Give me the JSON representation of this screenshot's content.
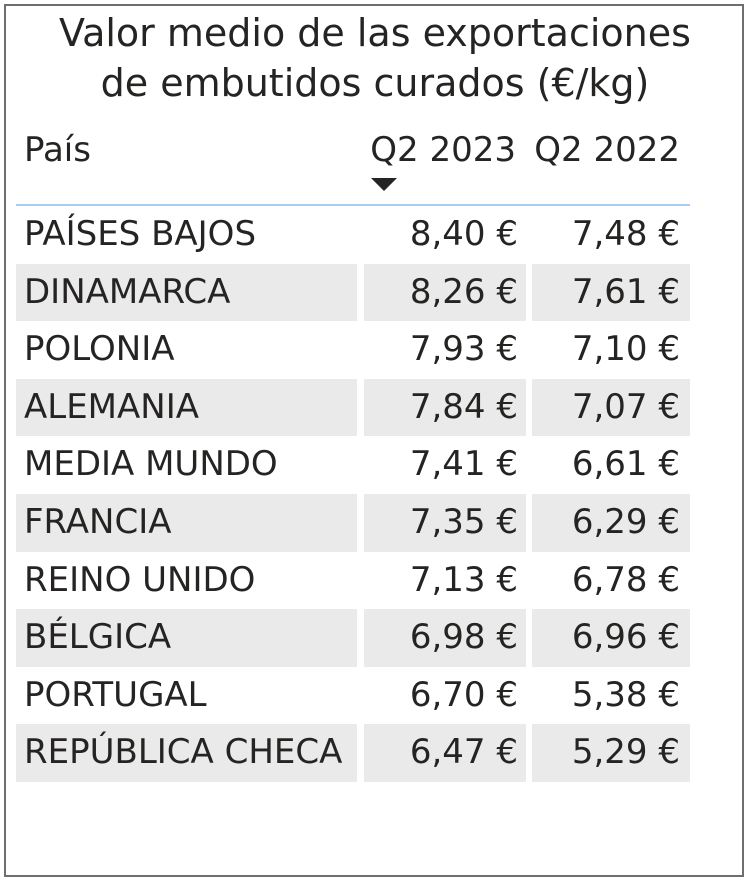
{
  "chart_data": {
    "type": "table",
    "title_line1": "Valor medio de las exportaciones",
    "title_line2": "de embutidos curados (€/kg)",
    "columns": [
      "País",
      "Q2 2023",
      "Q2 2022"
    ],
    "sort": {
      "column": "Q2 2023",
      "direction": "descending"
    },
    "rows": [
      {
        "pais": "PAÍSES BAJOS",
        "q2_2023": "8,40 €",
        "q2_2022": "7,48 €"
      },
      {
        "pais": "DINAMARCA",
        "q2_2023": "8,26 €",
        "q2_2022": "7,61 €"
      },
      {
        "pais": "POLONIA",
        "q2_2023": "7,93 €",
        "q2_2022": "7,10 €"
      },
      {
        "pais": "ALEMANIA",
        "q2_2023": "7,84 €",
        "q2_2022": "7,07 €"
      },
      {
        "pais": "MEDIA MUNDO",
        "q2_2023": "7,41 €",
        "q2_2022": "6,61 €"
      },
      {
        "pais": "FRANCIA",
        "q2_2023": "7,35 €",
        "q2_2022": "6,29 €"
      },
      {
        "pais": "REINO UNIDO",
        "q2_2023": "7,13 €",
        "q2_2022": "6,78 €"
      },
      {
        "pais": "BÉLGICA",
        "q2_2023": "6,98 €",
        "q2_2022": "6,96 €"
      },
      {
        "pais": "PORTUGAL",
        "q2_2023": "6,70 €",
        "q2_2022": "5,38 €"
      },
      {
        "pais": "REPÚBLICA CHECA",
        "q2_2023": "6,47 €",
        "q2_2022": "5,29 €"
      }
    ]
  },
  "colors": {
    "text": "#252423",
    "alt_row": "#eaeaea",
    "header_rule": "#a9cdf0",
    "border": "#6e6e6e"
  }
}
